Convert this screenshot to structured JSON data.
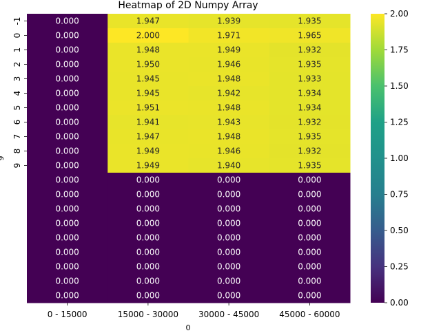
{
  "chart_data": {
    "type": "heatmap",
    "title": "Heatmap of 2D Numpy Array",
    "xlabel": "0",
    "ylabel": "9",
    "x_categories": [
      "0 - 15000",
      "15000 - 30000",
      "30000 - 45000",
      "45000 - 60000"
    ],
    "y_tick_labels": [
      "-1",
      "0",
      "1",
      "2",
      "3",
      "4",
      "5",
      "6",
      "7",
      "8",
      "9"
    ],
    "values": [
      [
        0.0,
        1.947,
        1.939,
        1.935
      ],
      [
        0.0,
        2.0,
        1.971,
        1.965
      ],
      [
        0.0,
        1.948,
        1.949,
        1.932
      ],
      [
        0.0,
        1.95,
        1.946,
        1.935
      ],
      [
        0.0,
        1.945,
        1.948,
        1.933
      ],
      [
        0.0,
        1.945,
        1.942,
        1.934
      ],
      [
        0.0,
        1.951,
        1.948,
        1.934
      ],
      [
        0.0,
        1.941,
        1.943,
        1.932
      ],
      [
        0.0,
        1.947,
        1.948,
        1.935
      ],
      [
        0.0,
        1.949,
        1.946,
        1.932
      ],
      [
        0.0,
        1.949,
        1.94,
        1.935
      ],
      [
        0.0,
        0.0,
        0.0,
        0.0
      ],
      [
        0.0,
        0.0,
        0.0,
        0.0
      ],
      [
        0.0,
        0.0,
        0.0,
        0.0
      ],
      [
        0.0,
        0.0,
        0.0,
        0.0
      ],
      [
        0.0,
        0.0,
        0.0,
        0.0
      ],
      [
        0.0,
        0.0,
        0.0,
        0.0
      ],
      [
        0.0,
        0.0,
        0.0,
        0.0
      ],
      [
        0.0,
        0.0,
        0.0,
        0.0
      ],
      [
        0.0,
        0.0,
        0.0,
        0.0
      ]
    ],
    "value_format_decimals": 3,
    "colormap": "viridis",
    "colorbar": {
      "vmin": 0.0,
      "vmax": 2.0,
      "ticks": [
        "0.00",
        "0.25",
        "0.50",
        "0.75",
        "1.00",
        "1.25",
        "1.50",
        "1.75",
        "2.00"
      ]
    },
    "colors": {
      "low": "#440154",
      "high": "#fde725",
      "text_on_dark": "#ffffff",
      "text_on_light": "#262626"
    }
  }
}
